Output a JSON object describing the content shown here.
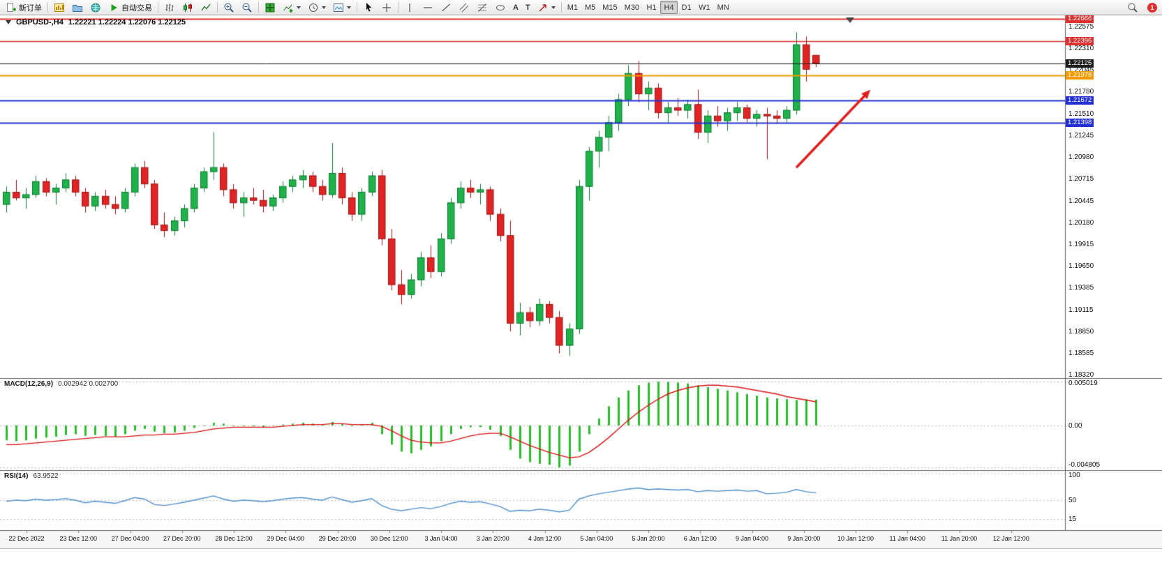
{
  "toolbar": {
    "new_order_label": "新订单",
    "autotrading_label": "自动交易",
    "timeframes": [
      "M1",
      "M5",
      "M15",
      "M30",
      "H1",
      "H4",
      "D1",
      "W1",
      "MN"
    ],
    "active_timeframe": "H4",
    "notification_count": "1"
  },
  "chart": {
    "title": "GBPUSD-,H4",
    "ohlc_values": "1.22221 1.22224 1.22076 1.22125",
    "macd_label": "MACD(12,26,9)",
    "macd_values": "0.002942 0.002700",
    "rsi_label": "RSI(14)",
    "rsi_value": "63.9522"
  },
  "chart_data": {
    "type": "candlestick",
    "symbol": "GBPUSD-",
    "timeframe": "H4",
    "price_axis": {
      "min": 1.1828,
      "max": 1.227,
      "ticks": [
        "1.22575",
        "1.22310",
        "1.22045",
        "1.21780",
        "1.21510",
        "1.21245",
        "1.20980",
        "1.20715",
        "1.20445",
        "1.20180",
        "1.19915",
        "1.19650",
        "1.19385",
        "1.19115",
        "1.18850",
        "1.18585",
        "1.18320"
      ]
    },
    "x_axis_labels": [
      "22 Dec 2022",
      "23 Dec 12:00",
      "27 Dec 04:00",
      "27 Dec 20:00",
      "28 Dec 12:00",
      "29 Dec 04:00",
      "29 Dec 20:00",
      "30 Dec 12:00",
      "3 Jan 04:00",
      "3 Jan 20:00",
      "4 Jan 12:00",
      "5 Jan 04:00",
      "5 Jan 20:00",
      "6 Jan 12:00",
      "9 Jan 04:00",
      "9 Jan 20:00",
      "10 Jan 12:00",
      "11 Jan 04:00",
      "11 Jan 20:00",
      "12 Jan 12:00"
    ],
    "candles": [
      [
        1.204,
        1.2062,
        1.203,
        1.2055
      ],
      [
        1.2055,
        1.207,
        1.2045,
        1.2048
      ],
      [
        1.2048,
        1.206,
        1.2035,
        1.2052
      ],
      [
        1.2052,
        1.2075,
        1.2048,
        1.2068
      ],
      [
        1.2068,
        1.2072,
        1.205,
        1.2055
      ],
      [
        1.2055,
        1.2065,
        1.204,
        1.206
      ],
      [
        1.206,
        1.2078,
        1.2055,
        1.207
      ],
      [
        1.207,
        1.2075,
        1.205,
        1.2055
      ],
      [
        1.2055,
        1.206,
        1.203,
        1.2038
      ],
      [
        1.2038,
        1.2055,
        1.2032,
        1.205
      ],
      [
        1.205,
        1.2058,
        1.2035,
        1.204
      ],
      [
        1.204,
        1.205,
        1.2028,
        1.2035
      ],
      [
        1.2035,
        1.206,
        1.203,
        1.2055
      ],
      [
        1.2055,
        1.209,
        1.205,
        1.2085
      ],
      [
        1.2085,
        1.2093,
        1.206,
        1.2065
      ],
      [
        1.2065,
        1.207,
        1.201,
        1.2015
      ],
      [
        1.2015,
        1.203,
        1.2,
        1.2008
      ],
      [
        1.2008,
        1.2025,
        1.2002,
        1.202
      ],
      [
        1.202,
        1.204,
        1.2012,
        1.2035
      ],
      [
        1.2035,
        1.2065,
        1.203,
        1.206
      ],
      [
        1.206,
        1.2085,
        1.2055,
        1.208
      ],
      [
        1.208,
        1.2128,
        1.207,
        1.2085
      ],
      [
        1.2085,
        1.209,
        1.205,
        1.2058
      ],
      [
        1.2058,
        1.2065,
        1.2035,
        1.2042
      ],
      [
        1.2042,
        1.2055,
        1.2025,
        1.2048
      ],
      [
        1.2048,
        1.206,
        1.204,
        1.2045
      ],
      [
        1.2045,
        1.2058,
        1.203,
        1.2038
      ],
      [
        1.2038,
        1.2052,
        1.2032,
        1.2048
      ],
      [
        1.2048,
        1.2068,
        1.2042,
        1.2062
      ],
      [
        1.2062,
        1.2075,
        1.2055,
        1.207
      ],
      [
        1.207,
        1.2082,
        1.206,
        1.2075
      ],
      [
        1.2075,
        1.208,
        1.2055,
        1.2062
      ],
      [
        1.2062,
        1.207,
        1.2045,
        1.2052
      ],
      [
        1.2052,
        1.2115,
        1.2048,
        1.2078
      ],
      [
        1.2078,
        1.2085,
        1.204,
        1.2048
      ],
      [
        1.2048,
        1.2055,
        1.202,
        1.2028
      ],
      [
        1.2028,
        1.206,
        1.202,
        1.2055
      ],
      [
        1.2055,
        1.208,
        1.205,
        1.2075
      ],
      [
        1.2075,
        1.2082,
        1.199,
        1.1998
      ],
      [
        1.1998,
        1.201,
        1.1935,
        1.1942
      ],
      [
        1.1942,
        1.196,
        1.1918,
        1.193
      ],
      [
        1.193,
        1.1955,
        1.1925,
        1.1948
      ],
      [
        1.1948,
        1.1982,
        1.194,
        1.1975
      ],
      [
        1.1975,
        1.199,
        1.195,
        1.1958
      ],
      [
        1.1958,
        1.2005,
        1.1952,
        1.1998
      ],
      [
        1.1998,
        1.2048,
        1.1992,
        1.2042
      ],
      [
        1.2042,
        1.2068,
        1.2035,
        1.206
      ],
      [
        1.206,
        1.207,
        1.2048,
        1.2055
      ],
      [
        1.2055,
        1.2065,
        1.204,
        1.2058
      ],
      [
        1.2058,
        1.2062,
        1.202,
        1.2028
      ],
      [
        1.2028,
        1.2035,
        1.1995,
        1.2002
      ],
      [
        1.2002,
        1.202,
        1.1885,
        1.1895
      ],
      [
        1.1895,
        1.192,
        1.188,
        1.1908
      ],
      [
        1.1908,
        1.1915,
        1.189,
        1.1898
      ],
      [
        1.1898,
        1.1925,
        1.1892,
        1.1918
      ],
      [
        1.1918,
        1.1922,
        1.1895,
        1.1902
      ],
      [
        1.1902,
        1.191,
        1.1858,
        1.1868
      ],
      [
        1.1868,
        1.1895,
        1.1855,
        1.1888
      ],
      [
        1.1888,
        1.207,
        1.1882,
        1.2062
      ],
      [
        1.2062,
        1.211,
        1.2045,
        1.2105
      ],
      [
        1.2105,
        1.213,
        1.2085,
        1.2122
      ],
      [
        1.2122,
        1.2148,
        1.2105,
        1.214
      ],
      [
        1.214,
        1.2175,
        1.213,
        1.2168
      ],
      [
        1.2168,
        1.221,
        1.216,
        1.22
      ],
      [
        1.22,
        1.2215,
        1.2165,
        1.2175
      ],
      [
        1.2175,
        1.219,
        1.2155,
        1.2182
      ],
      [
        1.2182,
        1.2188,
        1.2145,
        1.2152
      ],
      [
        1.2152,
        1.2165,
        1.214,
        1.2158
      ],
      [
        1.2158,
        1.217,
        1.2148,
        1.2155
      ],
      [
        1.2155,
        1.2168,
        1.2145,
        1.2162
      ],
      [
        1.2162,
        1.218,
        1.212,
        1.2128
      ],
      [
        1.2128,
        1.2155,
        1.2115,
        1.2148
      ],
      [
        1.2148,
        1.216,
        1.2135,
        1.2142
      ],
      [
        1.2142,
        1.2158,
        1.213,
        1.2152
      ],
      [
        1.2152,
        1.2165,
        1.2142,
        1.2158
      ],
      [
        1.2158,
        1.2162,
        1.214,
        1.2145
      ],
      [
        1.2145,
        1.2155,
        1.2135,
        1.215
      ],
      [
        1.215,
        1.2158,
        1.2095,
        1.2148
      ],
      [
        1.2148,
        1.2155,
        1.2138,
        1.2145
      ],
      [
        1.2145,
        1.216,
        1.214,
        1.2155
      ],
      [
        1.2155,
        1.225,
        1.215,
        1.2235
      ],
      [
        1.2235,
        1.2245,
        1.219,
        1.2205
      ],
      [
        1.22221,
        1.22224,
        1.22076,
        1.22125
      ]
    ],
    "hlines": [
      {
        "price": 1.22666,
        "label": "1.22666",
        "color": "#e03131",
        "width": 2
      },
      {
        "price": 1.22396,
        "label": "1.22396",
        "color": "#e03131",
        "width": 1.5
      },
      {
        "price": 1.22125,
        "label": "1.22125",
        "color": "#1c1c1c",
        "width": 1
      },
      {
        "price": 1.21978,
        "label": "1.21978",
        "color": "#f59b00",
        "width": 2
      },
      {
        "price": 1.21672,
        "label": "1.21672",
        "color": "#2230d6",
        "width": 2
      },
      {
        "price": 1.21398,
        "label": "1.21398",
        "color": "#2230d6",
        "width": 2
      }
    ],
    "arrow": {
      "from_bar": 80,
      "from_price": 1.2085,
      "to_bar": 87.5,
      "to_price": 1.218,
      "color": "#e01f1f"
    },
    "macd": {
      "max": 0.005019,
      "min": -0.004805,
      "scale_ticks": [
        {
          "v": 0.005019,
          "label": "0.005019"
        },
        {
          "v": 0,
          "label": "0.00"
        },
        {
          "v": -0.004805,
          "label": "-0.004805"
        }
      ],
      "histogram": [
        -0.0017,
        -0.0018,
        -0.0017,
        -0.0015,
        -0.0014,
        -0.0013,
        -0.0011,
        -0.001,
        -0.0012,
        -0.0011,
        -0.0012,
        -0.0013,
        -0.001,
        -0.0006,
        -0.0004,
        -0.0007,
        -0.0009,
        -0.0008,
        -0.0006,
        -0.0003,
        0.0,
        0.0003,
        0.0002,
        0.0,
        -0.0001,
        -0.0001,
        -0.0002,
        -0.0001,
        0.0001,
        0.0002,
        0.0003,
        0.0002,
        0.0001,
        0.0004,
        0.0002,
        -0.0001,
        0.0001,
        0.0003,
        -0.001,
        -0.0022,
        -0.003,
        -0.0032,
        -0.0028,
        -0.0024,
        -0.0018,
        -0.001,
        -0.0004,
        -0.0002,
        -0.0002,
        -0.0005,
        -0.0012,
        -0.0028,
        -0.0038,
        -0.0042,
        -0.0044,
        -0.0045,
        -0.0048,
        -0.0046,
        -0.003,
        -0.001,
        0.0008,
        0.0022,
        0.0032,
        0.004,
        0.0046,
        0.0049,
        0.005,
        0.005,
        0.0049,
        0.0048,
        0.0046,
        0.0044,
        0.0042,
        0.004,
        0.0038,
        0.0036,
        0.0034,
        0.0032,
        0.0031,
        0.003,
        0.0029,
        0.003,
        0.002942
      ],
      "signal": [
        -0.0022,
        -0.0022,
        -0.0021,
        -0.002,
        -0.0019,
        -0.0018,
        -0.0017,
        -0.0016,
        -0.0015,
        -0.0014,
        -0.0013,
        -0.0013,
        -0.0013,
        -0.0012,
        -0.0011,
        -0.0011,
        -0.001,
        -0.001,
        -0.0009,
        -0.0008,
        -0.0006,
        -0.0004,
        -0.0003,
        -0.0002,
        -0.0002,
        -0.0002,
        -0.0002,
        -0.0002,
        -0.0001,
        0.0,
        0.0001,
        0.0001,
        0.0001,
        0.0002,
        0.0002,
        0.0001,
        0.0001,
        0.0001,
        -0.0001,
        -0.0006,
        -0.0012,
        -0.0017,
        -0.0019,
        -0.002,
        -0.002,
        -0.0018,
        -0.0015,
        -0.0012,
        -0.001,
        -0.0009,
        -0.0009,
        -0.0013,
        -0.0018,
        -0.0023,
        -0.0027,
        -0.0031,
        -0.0034,
        -0.0037,
        -0.0036,
        -0.0031,
        -0.0023,
        -0.0014,
        -0.0004,
        0.0006,
        0.0015,
        0.0023,
        0.003,
        0.0036,
        0.004,
        0.0043,
        0.0045,
        0.0046,
        0.0046,
        0.0045,
        0.0044,
        0.0042,
        0.004,
        0.0038,
        0.0036,
        0.0033,
        0.0031,
        0.0029,
        0.0027
      ]
    },
    "rsi": {
      "min": 0,
      "max": 100,
      "levels": [
        100,
        50,
        15
      ],
      "scale_ticks": [
        {
          "v": 100,
          "label": "100"
        },
        {
          "v": 50,
          "label": "50"
        },
        {
          "v": 15,
          "label": "15"
        }
      ],
      "values": [
        48,
        50,
        49,
        52,
        50,
        51,
        53,
        50,
        45,
        48,
        46,
        44,
        49,
        55,
        52,
        42,
        40,
        43,
        46,
        50,
        54,
        58,
        52,
        48,
        50,
        49,
        47,
        49,
        52,
        54,
        55,
        52,
        50,
        56,
        51,
        46,
        49,
        53,
        40,
        33,
        30,
        33,
        36,
        34,
        38,
        44,
        48,
        46,
        47,
        43,
        38,
        29,
        31,
        30,
        33,
        31,
        28,
        31,
        52,
        58,
        62,
        65,
        68,
        71,
        73,
        70,
        71,
        70,
        69,
        70,
        66,
        68,
        67,
        68,
        69,
        67,
        68,
        62,
        63,
        65,
        70,
        66,
        63.95
      ]
    },
    "colors": {
      "up": "#1fb14a",
      "up_dark": "#0b7a30",
      "down": "#e02424",
      "down_dark": "#9c1414",
      "macd_hist": "#2bbb2b",
      "macd_signal": "#dd1111",
      "rsi_line": "#4f8fd0"
    }
  }
}
